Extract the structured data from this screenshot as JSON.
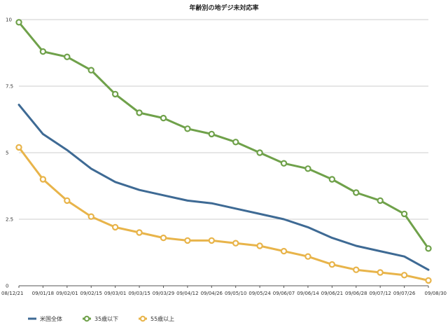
{
  "chart_data": {
    "type": "line",
    "title": "年齢別の地デジ未対応率",
    "xlabel": "",
    "ylabel": "",
    "x": [
      "08/12/21",
      "09/01/18",
      "09/02/01",
      "09/02/15",
      "09/03/01",
      "09/03/15",
      "09/03/29",
      "09/04/12",
      "09/04/26",
      "09/05/10",
      "09/05/24",
      "09/06/07",
      "09/06/14",
      "09/06/21",
      "09/06/28",
      "09/07/12",
      "09/07/26",
      "09/08/30"
    ],
    "y_ticks": [
      "0",
      "2.5",
      "5",
      "7.5",
      "10"
    ],
    "ylim": [
      0,
      10
    ],
    "grid": true,
    "legend_position": "bottom-left",
    "series": [
      {
        "name": "米国全体",
        "color": "#3e6a94",
        "marker": false,
        "values": [
          6.8,
          5.7,
          5.1,
          4.4,
          3.9,
          3.6,
          3.4,
          3.2,
          3.1,
          2.9,
          2.7,
          2.5,
          2.2,
          1.8,
          1.5,
          1.3,
          1.1,
          0.6
        ]
      },
      {
        "name": "35歳以下",
        "color": "#6fa14a",
        "marker": true,
        "values": [
          9.9,
          8.8,
          8.6,
          8.1,
          7.2,
          6.5,
          6.3,
          5.9,
          5.7,
          5.4,
          5.0,
          4.6,
          4.4,
          4.0,
          3.5,
          3.2,
          2.7,
          1.4
        ]
      },
      {
        "name": "55歳以上",
        "color": "#e8b44a",
        "marker": true,
        "values": [
          5.2,
          4.0,
          3.2,
          2.6,
          2.2,
          2.0,
          1.8,
          1.7,
          1.7,
          1.6,
          1.5,
          1.3,
          1.1,
          0.8,
          0.6,
          0.5,
          0.4,
          0.2
        ]
      }
    ]
  }
}
